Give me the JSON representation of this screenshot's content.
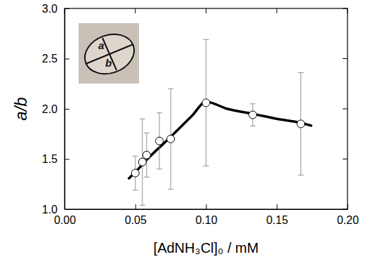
{
  "chart_data": {
    "type": "scatter",
    "x_label": "[AdNH₃Cl]₀ / mM",
    "y_label": "a/b",
    "annotations": [
      "a",
      "b"
    ],
    "xlim": [
      0,
      0.2
    ],
    "xticks": [
      {
        "value": 0,
        "label": "0.00"
      },
      {
        "value": 0.05,
        "label": "0.05"
      },
      {
        "value": 0.1,
        "label": "0.10"
      },
      {
        "value": 0.15,
        "label": "0.15"
      },
      {
        "value": 0.2,
        "label": "0.20"
      }
    ],
    "ylim": [
      1,
      3
    ],
    "yticks": [
      {
        "value": 1,
        "label": "1.0"
      },
      {
        "value": 1.5,
        "label": "1.5"
      },
      {
        "value": 2,
        "label": "2.0"
      },
      {
        "value": 2.5,
        "label": "2.5"
      },
      {
        "value": 3,
        "label": "3.0"
      }
    ],
    "series": [
      {
        "type": "scatter",
        "marker": "circle",
        "color": "#ffffff",
        "x": [
          0.05,
          0.055,
          0.058,
          0.067,
          0.075,
          0.1,
          0.133,
          0.167
        ],
        "values": [
          1.36,
          1.47,
          1.54,
          1.68,
          1.7,
          2.06,
          1.94,
          1.85
        ],
        "errors": [
          0.17,
          0.43,
          0.22,
          0.28,
          0.5,
          0.63,
          0.11,
          0.51
        ]
      },
      {
        "type": "line",
        "line_style": "solid",
        "color": "#000000",
        "x": [
          0.045,
          0.05,
          0.06,
          0.075,
          0.09,
          0.1,
          0.115,
          0.133,
          0.15,
          0.167,
          0.175
        ],
        "values": [
          1.3,
          1.37,
          1.52,
          1.72,
          1.93,
          2.07,
          2.0,
          1.95,
          1.9,
          1.86,
          1.83
        ]
      }
    ]
  }
}
